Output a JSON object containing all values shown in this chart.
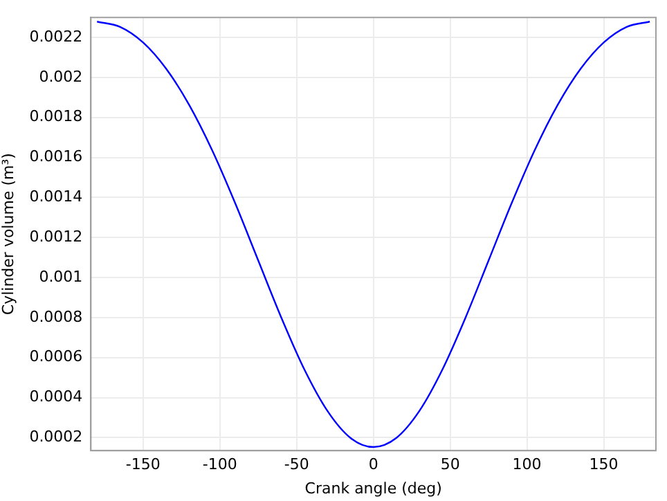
{
  "chart_data": {
    "type": "line",
    "xlabel": "Crank angle (deg)",
    "ylabel": "Cylinder volume (m³)",
    "x": [
      -180,
      -165,
      -150,
      -135,
      -120,
      -105,
      -90,
      -75,
      -60,
      -45,
      -30,
      -15,
      0,
      15,
      30,
      45,
      60,
      75,
      90,
      105,
      120,
      135,
      150,
      165,
      180
    ],
    "series": [
      {
        "color": "#0000ff",
        "values": [
          0.002279,
          0.002253,
          0.002175,
          0.002044,
          0.001863,
          0.001636,
          0.001371,
          0.001085,
          0.0008,
          0.000541,
          0.000334,
          0.000199,
          0.000153,
          0.000199,
          0.000334,
          0.000541,
          0.0008,
          0.001085,
          0.001371,
          0.001636,
          0.001863,
          0.002044,
          0.002175,
          0.002253,
          0.002279
        ]
      }
    ],
    "xlim": [
      -184,
      184
    ],
    "ylim": [
      0.000135,
      0.0023
    ],
    "xticks": [
      -150,
      -100,
      -50,
      0,
      50,
      100,
      150
    ],
    "yticks": [
      0.0002,
      0.0004,
      0.0006,
      0.0008,
      0.001,
      0.0012,
      0.0014,
      0.0016,
      0.0018,
      0.002,
      0.0022
    ],
    "grid": true,
    "marker": "none",
    "line_style": "solid"
  }
}
